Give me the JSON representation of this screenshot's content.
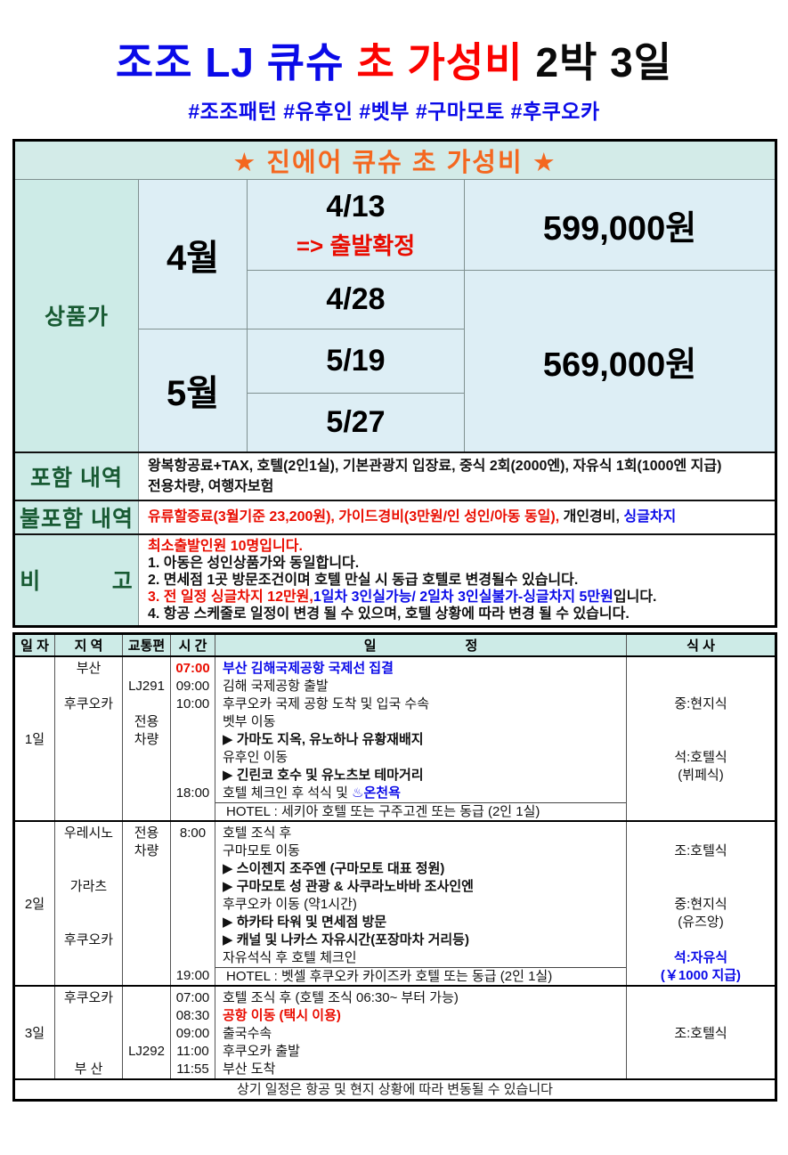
{
  "page": {
    "title_blue": "조조 LJ 큐슈",
    "title_red": "초 가성비",
    "title_black": "2박 3일",
    "hashtags": "#조조패턴 #유후인 #벳부 #구마모토 #후쿠오카"
  },
  "price_table": {
    "header": "★ 진에어 큐슈 초 가성비 ★",
    "row_label": "상품가",
    "month_april": "4월",
    "month_may": "5월",
    "date1": "4/13",
    "date1_note": "=> 출발확정",
    "date2": "4/28",
    "date3": "5/19",
    "date4": "5/27",
    "price_april13": "599,000원",
    "price_other": "569,000원"
  },
  "included": {
    "label": "포함 내역",
    "lines": [
      "왕복항공료+TAX, 호텔(2인1실), 기본관광지 입장료, 중식 2회(2000엔), 자유식 1회(1000엔 지급)",
      "전용차량, 여행자보험"
    ]
  },
  "excluded": {
    "label": "불포함 내역",
    "lines": [
      {
        "s": [
          {
            "t": "유류할증료(3월기준 23,200원), 가이드경비(3만원/인 성인/아동 동일),",
            "c": "red"
          },
          {
            "t": " 개인경비, ",
            "c": ""
          },
          {
            "t": "싱글차지",
            "c": "blue"
          }
        ]
      }
    ]
  },
  "notes": {
    "label": "비          고",
    "lines": [
      {
        "t": "최소출발인원 10명입니다.",
        "c": "red bold"
      },
      "1. 아동은 성인상품가와 동일합니다.",
      "2. 면세점 1곳 방문조건이며 호텔 만실 시 동급 호텔로 변경될수 있습니다.",
      {
        "s": [
          {
            "t": "3. 전 일정 싱글차지 12만원,",
            "c": "red"
          },
          {
            "t": "1일차 3인실가능/ 2일차 3인실불가-싱글차지 5만원",
            "c": "blue bold"
          },
          {
            "t": "입니다.",
            "c": ""
          }
        ]
      },
      "4. 항공 스케줄로 일정이 변경 될 수 있으며, 호텔 상황에 따라 변경 될 수 있습니다."
    ]
  },
  "itinerary": {
    "headers": {
      "day": "일 자",
      "region": "지 역",
      "transport": "교통편",
      "time": "시 간",
      "plan": "일                        정",
      "meal": "식 사"
    },
    "days": [
      {
        "day": "1일",
        "region": [
          "부산",
          "",
          "후쿠오카",
          "",
          "",
          "",
          "",
          "",
          ""
        ],
        "transport": [
          "",
          "LJ291",
          "",
          "전용",
          "차량",
          "",
          "",
          "",
          ""
        ],
        "time": [
          {
            "t": "07:00",
            "c": "red bold"
          },
          "09:00",
          "10:00",
          "",
          "",
          "",
          "",
          "18:00",
          ""
        ],
        "plan": [
          {
            "t": "부산 김해국제공항 국제선 집결",
            "c": "blue bold"
          },
          "김해 국제공항 출발",
          "후쿠오카 국제 공항 도착 및 입국 수속",
          "벳부 이동",
          {
            "t": "▶ 가마도 지옥, 유노하나 유황재배지",
            "c": "bold"
          },
          "유후인 이동",
          {
            "t": "▶ 긴린코 호수 및 유노츠보 테마거리",
            "c": "bold"
          },
          {
            "s": [
              {
                "t": "호텔 체크인 후 석식 및 ",
                "c": ""
              },
              {
                "t": "♨온천욕",
                "c": "blue bold"
              }
            ]
          },
          {
            "t": "HOTEL : 세키아 호텔 또는 구주고겐 또는 동급 (2인 1실)",
            "c": "hotel"
          }
        ],
        "meal": [
          "",
          "",
          "중:현지식",
          "",
          "",
          "석:호텔식",
          "(뷔페식)",
          "",
          ""
        ]
      },
      {
        "day": "2일",
        "region": [
          "우레시노",
          "",
          "",
          "가라츠",
          "",
          "",
          "후쿠오카",
          "",
          ""
        ],
        "transport": [
          "전용",
          "차량",
          "",
          "",
          "",
          "",
          "",
          "",
          ""
        ],
        "time": [
          "8:00",
          "",
          "",
          "",
          "",
          "",
          "",
          "",
          "19:00"
        ],
        "plan": [
          "호텔 조식 후",
          "구마모토 이동",
          {
            "t": "▶ 스이젠지 조주엔 (구마모토 대표 정원)",
            "c": "bold"
          },
          {
            "t": "▶ 구마모토 성 관광 & 사쿠라노바바 조사인엔",
            "c": "bold"
          },
          "후쿠오카 이동 (약1시간)",
          {
            "t": "▶ 하카타 타워 및 면세점 방문",
            "c": "bold"
          },
          {
            "t": "▶ 캐널 및 나카스 자유시간(포장마차 거리등)",
            "c": "bold"
          },
          "자유석식 후 호텔 체크인",
          {
            "t": "HOTEL : 벳셀 후쿠오카 카이즈카 호텔 또는 동급 (2인 1실)",
            "c": "hotel"
          }
        ],
        "meal": [
          "",
          "조:호텔식",
          "",
          "",
          "중:현지식",
          "(유즈앙)",
          "",
          {
            "t": "석:자유식",
            "c": "blue bold"
          },
          {
            "t": "(￥1000 지급)",
            "c": "blue bold"
          }
        ]
      },
      {
        "day": "3일",
        "region": [
          "후쿠오카",
          "",
          "",
          "",
          "부 산"
        ],
        "transport": [
          "",
          "",
          "",
          "LJ292",
          ""
        ],
        "time": [
          "07:00",
          "08:30",
          "09:00",
          "11:00",
          "11:55"
        ],
        "plan": [
          "호텔 조식 후 (호텔 조식 06:30~ 부터 가능)",
          {
            "t": "공항 이동 (택시 이용)",
            "c": "red bold"
          },
          "출국수속",
          "후쿠오카 출발",
          "부산 도착"
        ],
        "meal": [
          "",
          "",
          "조:호텔식",
          "",
          ""
        ]
      }
    ],
    "footer": "상기 일정은 항공 및 현지 상황에 따라 변동될 수 있습니다"
  }
}
